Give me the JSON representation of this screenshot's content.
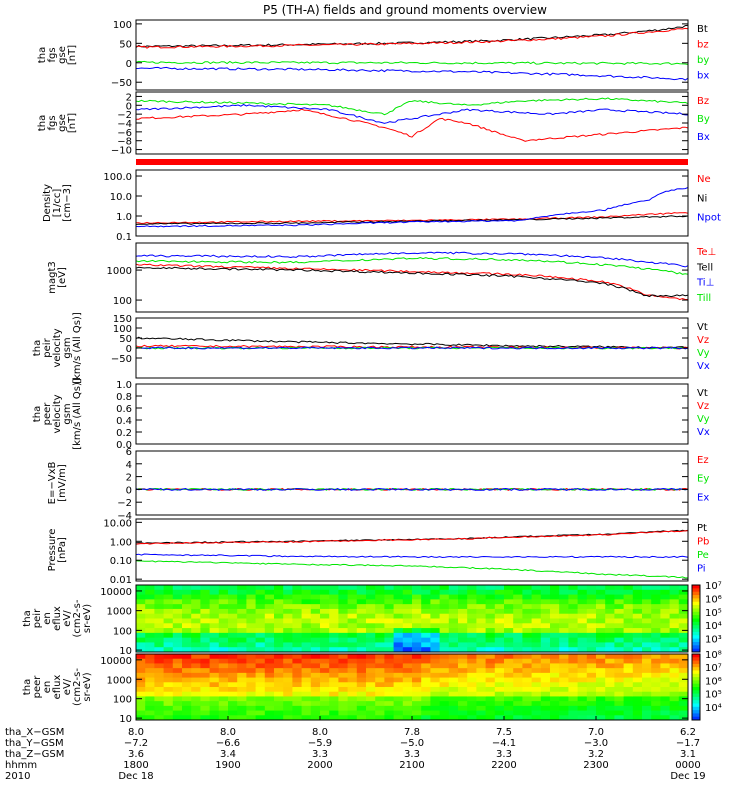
{
  "title": "P5 (TH-A) fields and ground moments overview",
  "colors": {
    "black": "#000000",
    "red": "#ff0000",
    "green": "#00e600",
    "blue": "#0000ff"
  },
  "chart_data": [
    {
      "type": "line",
      "id": "p1",
      "ylabel": [
        "tha",
        "fgs",
        "gse",
        "[nT]"
      ],
      "ylim": [
        -70,
        110
      ],
      "yticks": [
        {
          "v": 100,
          "label": "100"
        },
        {
          "v": 50,
          "label": "50"
        },
        {
          "v": 0,
          "label": "0"
        },
        {
          "v": -50,
          "label": "−50"
        }
      ],
      "series": [
        {
          "name": "Bt",
          "color": "black",
          "shape": [
            0,
            42,
            0.15,
            44,
            0.3,
            47,
            0.45,
            50,
            0.55,
            53,
            0.65,
            57,
            0.75,
            64,
            0.85,
            72,
            0.95,
            85,
            1,
            95
          ]
        },
        {
          "name": "bz",
          "color": "red",
          "shape": [
            0,
            40,
            0.15,
            42,
            0.3,
            45,
            0.45,
            48,
            0.55,
            51,
            0.65,
            55,
            0.75,
            61,
            0.85,
            69,
            0.95,
            82,
            1,
            88
          ]
        },
        {
          "name": "by",
          "color": "green",
          "shape": [
            0,
            1,
            0.5,
            0,
            1,
            -2
          ]
        },
        {
          "name": "bx",
          "color": "blue",
          "shape": [
            0,
            -14,
            0.3,
            -17,
            0.6,
            -23,
            0.8,
            -31,
            1,
            -42
          ]
        }
      ]
    },
    {
      "type": "line",
      "id": "p2",
      "ylabel": [
        "tha",
        "fgs",
        "gse",
        "[nT]"
      ],
      "ylim": [
        -11,
        3
      ],
      "yticks": [
        {
          "v": 2,
          "label": "2"
        },
        {
          "v": 0,
          "label": "0"
        },
        {
          "v": -2,
          "label": "−2"
        },
        {
          "v": -4,
          "label": "−4"
        },
        {
          "v": -6,
          "label": "−6"
        },
        {
          "v": -8,
          "label": "−8"
        },
        {
          "v": -10,
          "label": "−10"
        }
      ],
      "series": [
        {
          "name": "Bz",
          "color": "red",
          "shape": [
            0,
            -3,
            0.2,
            -2,
            0.3,
            -1,
            0.38,
            -3,
            0.45,
            -5,
            0.5,
            -7,
            0.55,
            -3,
            0.6,
            -4,
            0.7,
            -8,
            0.8,
            -7,
            0.9,
            -6,
            1,
            -5
          ]
        },
        {
          "name": "By",
          "color": "green",
          "shape": [
            0,
            1,
            0.2,
            0.5,
            0.35,
            0,
            0.45,
            -2,
            0.5,
            1,
            0.6,
            0,
            0.7,
            1,
            0.85,
            1.5,
            1,
            0.5
          ]
        },
        {
          "name": "Bx",
          "color": "blue",
          "shape": [
            0,
            -1,
            0.2,
            0,
            0.35,
            -1,
            0.45,
            -4,
            0.5,
            -3,
            0.6,
            -1,
            0.75,
            -2,
            0.85,
            -1,
            1,
            -2
          ]
        }
      ]
    },
    {
      "type": "line",
      "id": "p3",
      "ylabel": [
        "Density",
        "[1/cc]",
        "[cm−3]"
      ],
      "ylim": [
        0.1,
        200
      ],
      "log": true,
      "yticks": [
        {
          "v": 100,
          "label": "100.0"
        },
        {
          "v": 10,
          "label": "10.0"
        },
        {
          "v": 1,
          "label": "1.0"
        },
        {
          "v": 0.1,
          "label": "0.1"
        }
      ],
      "series": [
        {
          "name": "Ne",
          "color": "red",
          "shape": [
            0,
            0.45,
            0.3,
            0.55,
            0.5,
            0.6,
            0.7,
            0.7,
            0.85,
            0.9,
            0.95,
            1.3,
            1,
            1.5
          ]
        },
        {
          "name": "Ni",
          "color": "black",
          "shape": [
            0,
            0.4,
            0.3,
            0.45,
            0.5,
            0.55,
            0.7,
            0.65,
            0.85,
            0.8,
            1,
            1.0
          ]
        },
        {
          "name": "Npot",
          "color": "blue",
          "shape": [
            0,
            0.3,
            0.3,
            0.35,
            0.5,
            0.5,
            0.7,
            0.6,
            0.85,
            2,
            0.93,
            6,
            0.97,
            20,
            1,
            25
          ]
        }
      ]
    },
    {
      "type": "line",
      "id": "p4",
      "ylabel": [
        "magt3",
        "[eV]"
      ],
      "ylim": [
        40,
        8000
      ],
      "log": true,
      "yticks": [
        {
          "v": 1000,
          "label": "1000"
        },
        {
          "v": 100,
          "label": "100"
        }
      ],
      "series": [
        {
          "name": "Te⊥",
          "color": "red",
          "shape": [
            0,
            1500,
            0.3,
            1100,
            0.5,
            900,
            0.7,
            700,
            0.85,
            400,
            0.92,
            150,
            1,
            100
          ]
        },
        {
          "name": "Tell",
          "color": "black",
          "shape": [
            0,
            1200,
            0.3,
            1000,
            0.5,
            800,
            0.7,
            600,
            0.85,
            350,
            0.92,
            140,
            1,
            140
          ]
        },
        {
          "name": "Ti⊥",
          "color": "blue",
          "shape": [
            0,
            3000,
            0.3,
            2800,
            0.5,
            3800,
            0.7,
            3500,
            0.85,
            2500,
            1,
            1300
          ]
        },
        {
          "name": "Till",
          "color": "green",
          "shape": [
            0,
            2000,
            0.3,
            1800,
            0.5,
            2500,
            0.7,
            2200,
            0.85,
            1500,
            1,
            700
          ]
        }
      ]
    },
    {
      "type": "line",
      "id": "p5",
      "ylabel": [
        "tha",
        "peir",
        "velocity",
        "gsm",
        "[km/s (All Qs)]"
      ],
      "ylim": [
        -150,
        150
      ],
      "yticks": [
        {
          "v": 150,
          "label": "150"
        },
        {
          "v": 100,
          "label": "100"
        },
        {
          "v": 50,
          "label": "50"
        },
        {
          "v": 0,
          "label": "0"
        },
        {
          "v": -50,
          "label": "−50"
        }
      ],
      "series": [
        {
          "name": "Vt",
          "color": "black",
          "shape": [
            0,
            50,
            0.3,
            30,
            0.5,
            20,
            0.7,
            10,
            1,
            2
          ]
        },
        {
          "name": "Vz",
          "color": "red",
          "shape": [
            0,
            10,
            0.5,
            5,
            1,
            0
          ]
        },
        {
          "name": "Vy",
          "color": "green",
          "shape": [
            0,
            0,
            1,
            0
          ]
        },
        {
          "name": "Vx",
          "color": "blue",
          "shape": [
            0,
            0,
            1,
            0
          ]
        }
      ]
    },
    {
      "type": "line",
      "id": "p6",
      "ylabel": [
        "tha",
        "peer",
        "velocity",
        "gsm",
        "[km/s (All Qs)]"
      ],
      "ylim": [
        0,
        1
      ],
      "yticks": [
        {
          "v": 1,
          "label": "1.0"
        },
        {
          "v": 0.8,
          "label": "0.8"
        },
        {
          "v": 0.6,
          "label": "0.6"
        },
        {
          "v": 0.4,
          "label": "0.4"
        },
        {
          "v": 0.2,
          "label": "0.2"
        },
        {
          "v": 0,
          "label": "0.0"
        }
      ],
      "series": [
        {
          "name": "Vt",
          "color": "black",
          "shape": []
        },
        {
          "name": "Vz",
          "color": "red",
          "shape": []
        },
        {
          "name": "Vy",
          "color": "green",
          "shape": []
        },
        {
          "name": "Vx",
          "color": "blue",
          "shape": []
        }
      ]
    },
    {
      "type": "line",
      "id": "p7",
      "ylabel": [
        "E=−VxB",
        "[mV/m]"
      ],
      "ylim": [
        -4,
        6
      ],
      "yticks": [
        {
          "v": 6,
          "label": "6"
        },
        {
          "v": 4,
          "label": "4"
        },
        {
          "v": 2,
          "label": "2"
        },
        {
          "v": 0,
          "label": "0"
        },
        {
          "v": -2,
          "label": "−2"
        },
        {
          "v": -4,
          "label": "−4"
        }
      ],
      "series": [
        {
          "name": "Ez",
          "color": "red",
          "shape": [
            0,
            0,
            1,
            0
          ]
        },
        {
          "name": "Ey",
          "color": "green",
          "shape": [
            0,
            0,
            1,
            0
          ]
        },
        {
          "name": "Ex",
          "color": "blue",
          "shape": [
            0,
            0,
            1,
            0
          ]
        }
      ]
    },
    {
      "type": "line",
      "id": "p8",
      "ylabel": [
        "Pressure",
        "[nPa]"
      ],
      "ylim": [
        0.008,
        15
      ],
      "log": true,
      "yticks": [
        {
          "v": 10,
          "label": "10.00"
        },
        {
          "v": 1,
          "label": "1.00"
        },
        {
          "v": 0.1,
          "label": "0.10"
        },
        {
          "v": 0.01,
          "label": "0.01"
        }
      ],
      "series": [
        {
          "name": "Pt",
          "color": "black",
          "shape": [
            0,
            0.8,
            0.3,
            1.0,
            0.6,
            1.4,
            0.85,
            2.3,
            1,
            3.8
          ]
        },
        {
          "name": "Pb",
          "color": "red",
          "shape": [
            0,
            0.75,
            0.3,
            0.95,
            0.6,
            1.35,
            0.85,
            2.2,
            1,
            3.6
          ]
        },
        {
          "name": "Pe",
          "color": "green",
          "shape": [
            0,
            0.09,
            0.3,
            0.06,
            0.5,
            0.05,
            0.7,
            0.03,
            0.85,
            0.018,
            1,
            0.012
          ]
        },
        {
          "name": "Pi",
          "color": "blue",
          "shape": [
            0,
            0.2,
            0.3,
            0.16,
            0.5,
            0.15,
            0.7,
            0.15,
            1,
            0.15
          ]
        }
      ]
    },
    {
      "type": "heatmap",
      "id": "p9",
      "ylabel": [
        "tha",
        "peir",
        "en",
        "eflux",
        "eV/",
        "(cm2-s-",
        "sr-eV)"
      ],
      "log": true,
      "ylim": [
        8,
        20000
      ],
      "yticks": [
        {
          "v": 10000,
          "label": "10000"
        },
        {
          "v": 1000,
          "label": "1000"
        },
        {
          "v": 100,
          "label": "100"
        },
        {
          "v": 10,
          "label": "10"
        }
      ],
      "colorbar": {
        "zmin": 2,
        "zmax": 7,
        "labels": [
          {
            "p": 7,
            "label": "10⁷"
          },
          {
            "p": 6,
            "label": "10⁶"
          },
          {
            "p": 5,
            "label": "10⁵"
          },
          {
            "p": 4,
            "label": "10⁴"
          },
          {
            "p": 3,
            "label": "10³"
          }
        ]
      }
    },
    {
      "type": "heatmap",
      "id": "p10",
      "ylabel": [
        "tha",
        "peer",
        "en",
        "eflux",
        "eV/",
        "(cm2-s-",
        "sr-eV)"
      ],
      "log": true,
      "ylim": [
        8,
        20000
      ],
      "yticks": [
        {
          "v": 10000,
          "label": "10000"
        },
        {
          "v": 1000,
          "label": "1000"
        },
        {
          "v": 100,
          "label": "100"
        },
        {
          "v": 10,
          "label": "10"
        }
      ],
      "colorbar": {
        "zmin": 3,
        "zmax": 8,
        "labels": [
          {
            "p": 8,
            "label": "10⁸"
          },
          {
            "p": 7,
            "label": "10⁷"
          },
          {
            "p": 6,
            "label": "10⁶"
          },
          {
            "p": 5,
            "label": "10⁵"
          },
          {
            "p": 4,
            "label": "10⁴"
          }
        ]
      }
    }
  ],
  "xaxis": {
    "rows": [
      {
        "label": "tha_X−GSM",
        "values": [
          "8.0",
          "8.0",
          "8.0",
          "7.8",
          "7.5",
          "7.0",
          "6.2"
        ]
      },
      {
        "label": "tha_Y−GSM",
        "values": [
          "−7.2",
          "−6.6",
          "−5.9",
          "−5.0",
          "−4.1",
          "−3.0",
          "−1.7"
        ]
      },
      {
        "label": "tha_Z−GSM",
        "values": [
          "3.6",
          "3.4",
          "3.3",
          "3.3",
          "3.3",
          "3.2",
          "3.1"
        ]
      },
      {
        "label": "hhmm",
        "values": [
          "1800",
          "1900",
          "2000",
          "2100",
          "2200",
          "2300",
          "0000"
        ]
      },
      {
        "label": "2010",
        "values": [
          "Dec 18",
          "",
          "",
          "",
          "",
          "",
          "Dec 19"
        ]
      }
    ]
  }
}
